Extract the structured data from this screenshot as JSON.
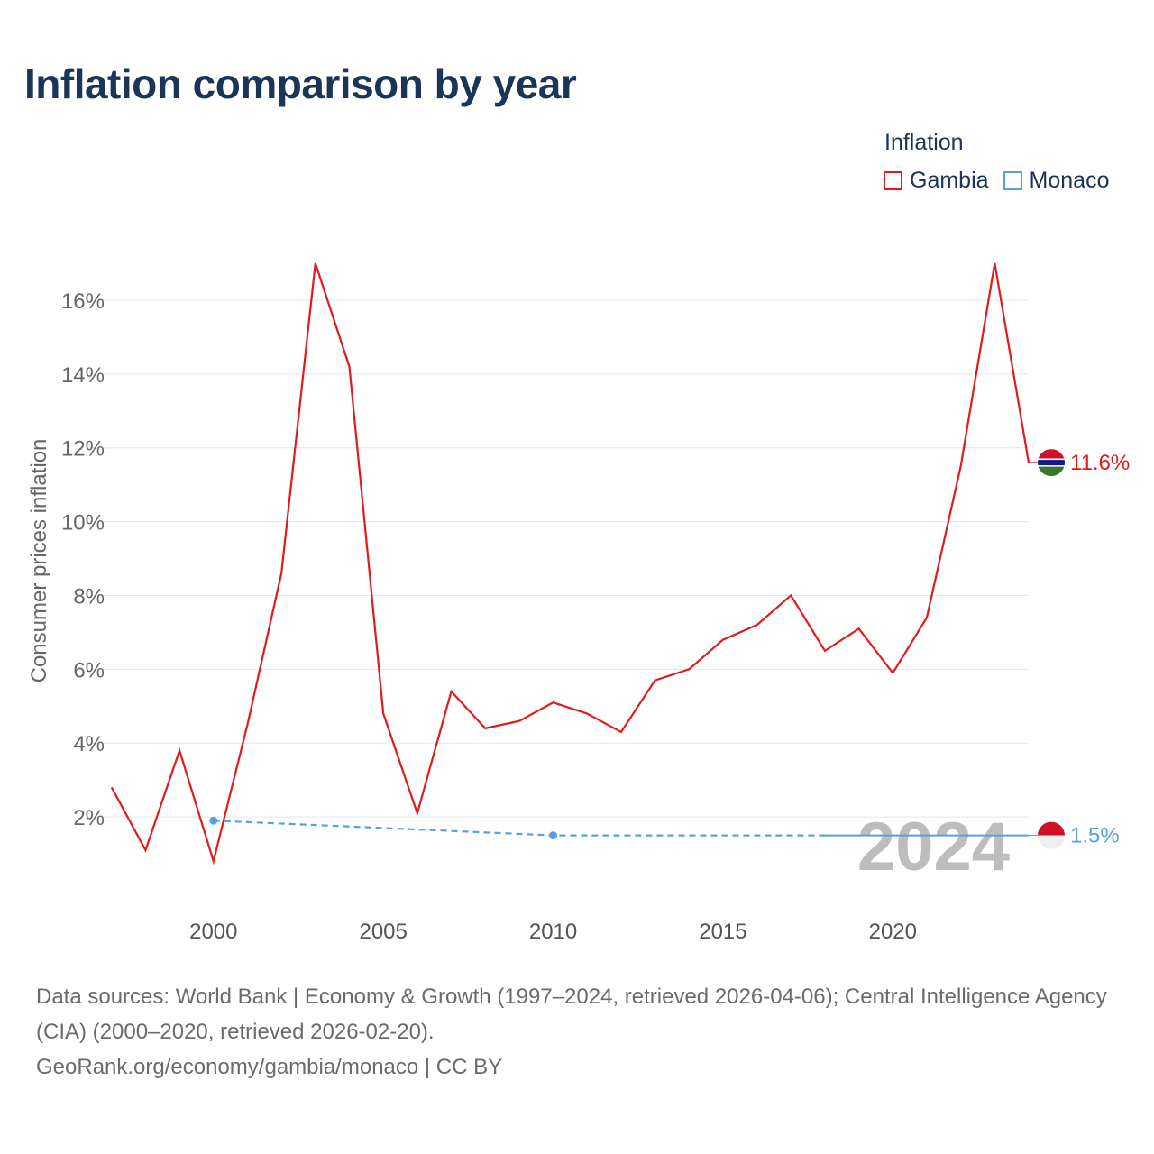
{
  "page": {
    "title": "Inflation comparison by year",
    "sources_line": "Data sources: World Bank | Economy & Growth (1997–2024, retrieved 2026-04-06); Central Intelligence Agency (CIA) (2000–2020, retrieved 2026-02-20).",
    "credit_line": "GeoRank.org/economy/gambia/monaco | CC BY"
  },
  "legend": {
    "title": "Inflation",
    "items": [
      {
        "label": "Gambia",
        "color": "#e31a1c"
      },
      {
        "label": "Monaco",
        "color": "#5aa0e0"
      }
    ]
  },
  "chart_data": {
    "type": "line",
    "title": "Inflation comparison by year",
    "xlabel": "",
    "ylabel": "Consumer prices inflation",
    "xlim": [
      1996.9,
      2024
    ],
    "ylim": [
      0,
      17
    ],
    "x_ticks": [
      2000,
      2005,
      2010,
      2015,
      2020
    ],
    "y_ticks": [
      2,
      4,
      6,
      8,
      10,
      12,
      14,
      16
    ],
    "y_tick_suffix": "%",
    "grid": true,
    "watermark_year": "2024",
    "series": [
      {
        "name": "Gambia",
        "color": "#e31a1c",
        "end_label": "11.6%",
        "x": [
          1997,
          1998,
          1999,
          2000,
          2001,
          2002,
          2003,
          2004,
          2005,
          2006,
          2007,
          2008,
          2009,
          2010,
          2011,
          2012,
          2013,
          2014,
          2015,
          2016,
          2017,
          2018,
          2019,
          2020,
          2021,
          2022,
          2023,
          2024
        ],
        "values": [
          2.8,
          1.1,
          3.8,
          0.8,
          4.5,
          8.6,
          17.0,
          14.2,
          4.8,
          2.1,
          5.4,
          4.4,
          4.6,
          5.1,
          4.8,
          4.3,
          5.7,
          6.0,
          6.8,
          7.2,
          8.0,
          6.5,
          7.1,
          5.9,
          7.4,
          11.5,
          17.0,
          11.6
        ],
        "flag": "gambia"
      },
      {
        "name": "Monaco",
        "color": "#5aa0e0",
        "end_label": "1.5%",
        "x": [
          2000,
          2010,
          2018,
          2024
        ],
        "values": [
          1.9,
          1.5,
          1.5,
          1.5
        ],
        "marker_x": [
          2000,
          2010
        ],
        "dashed_until_index": 2,
        "flag": "monaco"
      }
    ]
  }
}
